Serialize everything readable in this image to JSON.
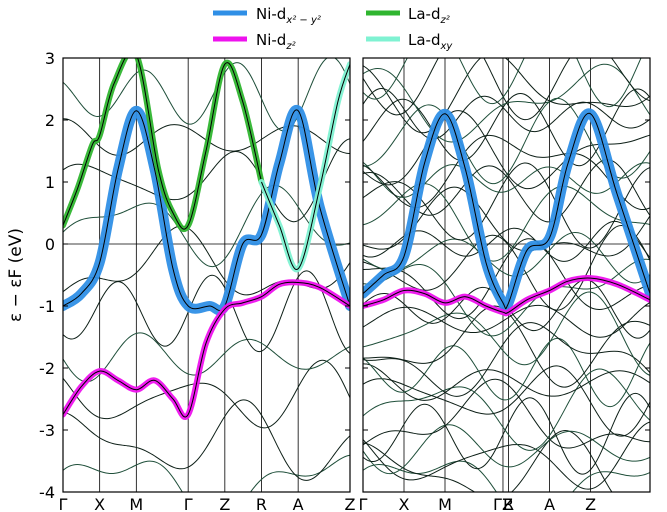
{
  "legend": {
    "items": [
      {
        "label": "Ni-d",
        "sub": "x² − y²",
        "color": "#2f8fe6"
      },
      {
        "label": "Ni-d",
        "sub": "z²",
        "color": "#ee12ee"
      },
      {
        "label": "La-d",
        "sub": "z²",
        "color": "#2fb52f"
      },
      {
        "label": "La-d",
        "sub": "xy",
        "color": "#7ff2d2"
      }
    ]
  },
  "chart_data": [
    {
      "type": "line",
      "panel": "left",
      "ylabel": "ε − εF (eV)",
      "ylim": [
        -4,
        3
      ],
      "yticks": [
        -4,
        -3,
        -2,
        -1,
        0,
        1,
        2,
        3
      ],
      "k_labels": [
        "Γ",
        "X",
        "M",
        "Γ",
        "Z",
        "R",
        "A",
        "Z"
      ],
      "k_pos": [
        0,
        1,
        2,
        3.414,
        4.414,
        5.414,
        6.414,
        7.828
      ],
      "series": [
        {
          "name": "Ni-dx²−y²",
          "color": "#2f8fe6",
          "x": [
            0,
            0.5,
            1.0,
            1.5,
            2.0,
            2.5,
            3.0,
            3.414,
            4.0,
            4.414,
            4.9,
            5.414,
            5.9,
            6.414,
            7.0,
            7.828
          ],
          "y": [
            -1.0,
            -0.8,
            -0.3,
            1.2,
            2.15,
            1.2,
            -0.4,
            -1.0,
            -1.0,
            -1.0,
            0.0,
            0.15,
            1.3,
            2.15,
            0.6,
            -1.0
          ]
        },
        {
          "name": "Ni-dz²",
          "color": "#ee12ee",
          "x": [
            0,
            0.5,
            1.0,
            1.5,
            2.0,
            2.5,
            3.0,
            3.414,
            3.9,
            4.414,
            4.9,
            5.414,
            5.9,
            6.414,
            7.0,
            7.828
          ],
          "y": [
            -2.75,
            -2.3,
            -2.05,
            -2.2,
            -2.35,
            -2.2,
            -2.5,
            -2.75,
            -1.6,
            -1.05,
            -0.95,
            -0.85,
            -0.65,
            -0.62,
            -0.7,
            -1.0
          ]
        },
        {
          "name": "La-dz²",
          "color": "#2fb52f",
          "x": [
            0,
            0.4,
            0.8,
            1.0,
            1.4,
            2.0,
            2.6,
            3.0,
            3.414,
            3.9,
            4.414,
            4.9,
            5.414
          ],
          "y": [
            0.3,
            0.9,
            1.6,
            1.75,
            2.6,
            3.05,
            1.2,
            0.5,
            0.3,
            1.5,
            2.9,
            2.3,
            1.0
          ]
        },
        {
          "name": "La-dxy",
          "color": "#7ff2d2",
          "x": [
            5.414,
            5.9,
            6.414,
            7.0,
            7.5,
            7.828
          ],
          "y": [
            1.0,
            0.3,
            -0.4,
            0.9,
            2.3,
            2.9
          ]
        }
      ]
    },
    {
      "type": "line",
      "panel": "right",
      "ylim": [
        -4,
        3
      ],
      "k_labels": [
        "Γ",
        "X",
        "M",
        "ΓZ",
        "R",
        "A",
        "Z"
      ],
      "k_pos": [
        0,
        1,
        2,
        3.414,
        3.55,
        4.55,
        5.55,
        7.0
      ],
      "series": [
        {
          "name": "Ni-dx²−y²",
          "color": "#2f8fe6",
          "x": [
            0,
            0.5,
            1.0,
            1.5,
            2.0,
            2.5,
            3.0,
            3.414,
            3.55,
            4.0,
            4.55,
            5.0,
            5.55,
            6.2,
            7.0
          ],
          "y": [
            -0.8,
            -0.5,
            -0.2,
            1.3,
            2.1,
            1.2,
            -0.3,
            -0.95,
            -0.95,
            -0.1,
            0.1,
            1.3,
            2.1,
            0.8,
            -0.8
          ]
        },
        {
          "name": "Ni-dz²",
          "color": "#ee12ee",
          "x": [
            0,
            0.5,
            1.0,
            1.5,
            2.0,
            2.5,
            3.0,
            3.414,
            3.55,
            4.0,
            4.55,
            5.0,
            5.55,
            6.2,
            7.0
          ],
          "y": [
            -1.0,
            -0.9,
            -0.75,
            -0.8,
            -0.95,
            -0.85,
            -1.0,
            -1.1,
            -1.1,
            -0.9,
            -0.75,
            -0.6,
            -0.55,
            -0.65,
            -0.9
          ]
        }
      ]
    }
  ]
}
